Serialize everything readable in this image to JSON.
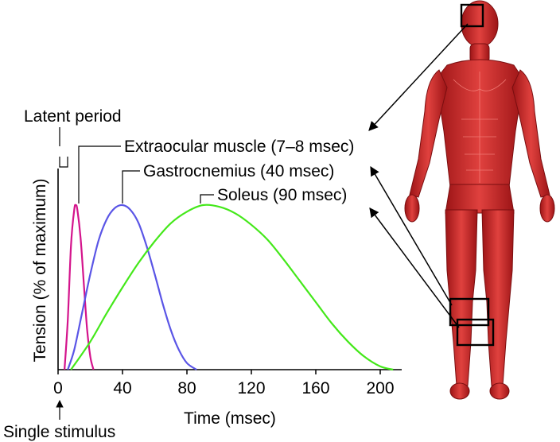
{
  "chart_data": {
    "type": "line",
    "title": "",
    "xlabel": "Time (msec)",
    "ylabel": "Tension (% of maximum)",
    "xlim": [
      0,
      210
    ],
    "x_ticks": [
      0,
      40,
      80,
      120,
      160,
      200
    ],
    "grid": false,
    "series": [
      {
        "name": "Extraocular muscle (7–8 msec)",
        "color": "#d4148c",
        "x": [
          4,
          6,
          8,
          10,
          11,
          12,
          14,
          16,
          18,
          20,
          22
        ],
        "y": [
          0,
          30,
          75,
          97,
          100,
          97,
          80,
          52,
          25,
          8,
          0
        ]
      },
      {
        "name": "Gastrocnemius (40 msec)",
        "color": "#5a55e6",
        "x": [
          6,
          10,
          15,
          20,
          25,
          30,
          35,
          40,
          45,
          50,
          55,
          60,
          65,
          70,
          75,
          80,
          86
        ],
        "y": [
          0,
          12,
          35,
          58,
          78,
          91,
          98,
          100,
          97,
          89,
          75,
          58,
          40,
          24,
          12,
          4,
          0
        ]
      },
      {
        "name": "Soleus (90 msec)",
        "color": "#44e81a",
        "x": [
          8,
          20,
          30,
          40,
          50,
          60,
          70,
          80,
          90,
          100,
          110,
          120,
          130,
          140,
          150,
          160,
          170,
          180,
          190,
          200,
          208
        ],
        "y": [
          0,
          17,
          34,
          50,
          65,
          78,
          89,
          96,
          100,
          99,
          95,
          88,
          79,
          67,
          54,
          41,
          28,
          17,
          8,
          2,
          0
        ]
      }
    ],
    "annotations": {
      "latent_period": "Latent period",
      "stimulus": "Single stimulus"
    }
  }
}
